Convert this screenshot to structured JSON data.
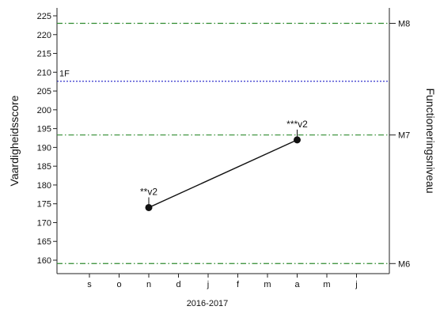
{
  "chart_data": {
    "type": "line",
    "ylabel": "Vaardigheidsscore",
    "y2label": "Functioneringsniveau",
    "xlabel": "2016-2017",
    "ylim": [
      158,
      226
    ],
    "y_ticks": [
      160,
      165,
      170,
      175,
      180,
      185,
      190,
      195,
      200,
      205,
      210,
      215,
      220,
      225
    ],
    "x_ticks": [
      "s",
      "o",
      "n",
      "d",
      "j",
      "f",
      "m",
      "a",
      "m",
      "j"
    ],
    "grid": false,
    "reference_lines": [
      {
        "label": "M8",
        "y": 223.0,
        "color": "#2e8b2e",
        "side": "right"
      },
      {
        "label": "M7",
        "y": 193.3,
        "color": "#2e8b2e",
        "side": "right"
      },
      {
        "label": "M6",
        "y": 159.1,
        "color": "#2e8b2e",
        "side": "right"
      },
      {
        "label": "1F",
        "y": 207.6,
        "color": "#3333cc",
        "side": "left"
      }
    ],
    "series": [
      {
        "points": [
          {
            "x": "n",
            "y": 174,
            "label": "**v2"
          },
          {
            "x": "a",
            "y": 192,
            "label": "***v2"
          }
        ]
      }
    ]
  }
}
